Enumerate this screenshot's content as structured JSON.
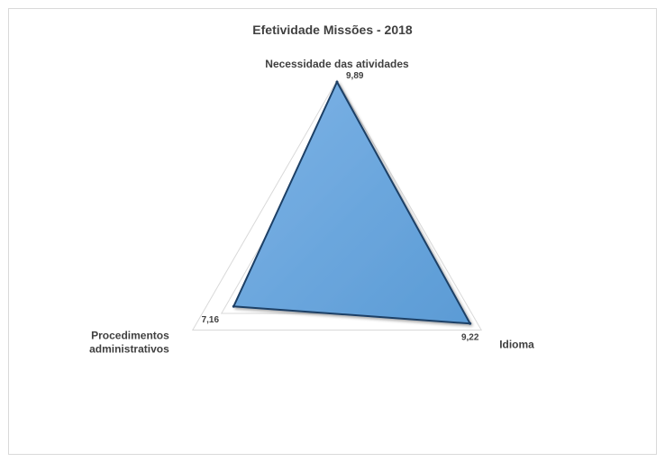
{
  "chart_data": {
    "type": "radar",
    "title": "Efetividade Missões - 2018",
    "categories": [
      [
        "Necessidade das atividades"
      ],
      [
        "Idioma"
      ],
      [
        "Procedimentos",
        "administrativos"
      ]
    ],
    "series": [
      {
        "values": [
          9.89,
          9.22,
          7.16
        ],
        "value_labels": [
          "9,89",
          "9,22",
          "7,16"
        ]
      }
    ],
    "rlim": [
      0,
      10
    ],
    "ring_count": 5,
    "grid": true,
    "legend": "none",
    "colors": {
      "fill": "#5b9bd5",
      "fill_light": "#7db3e6",
      "stroke": "#1f3f66",
      "grid": "#d9d9d9"
    }
  }
}
